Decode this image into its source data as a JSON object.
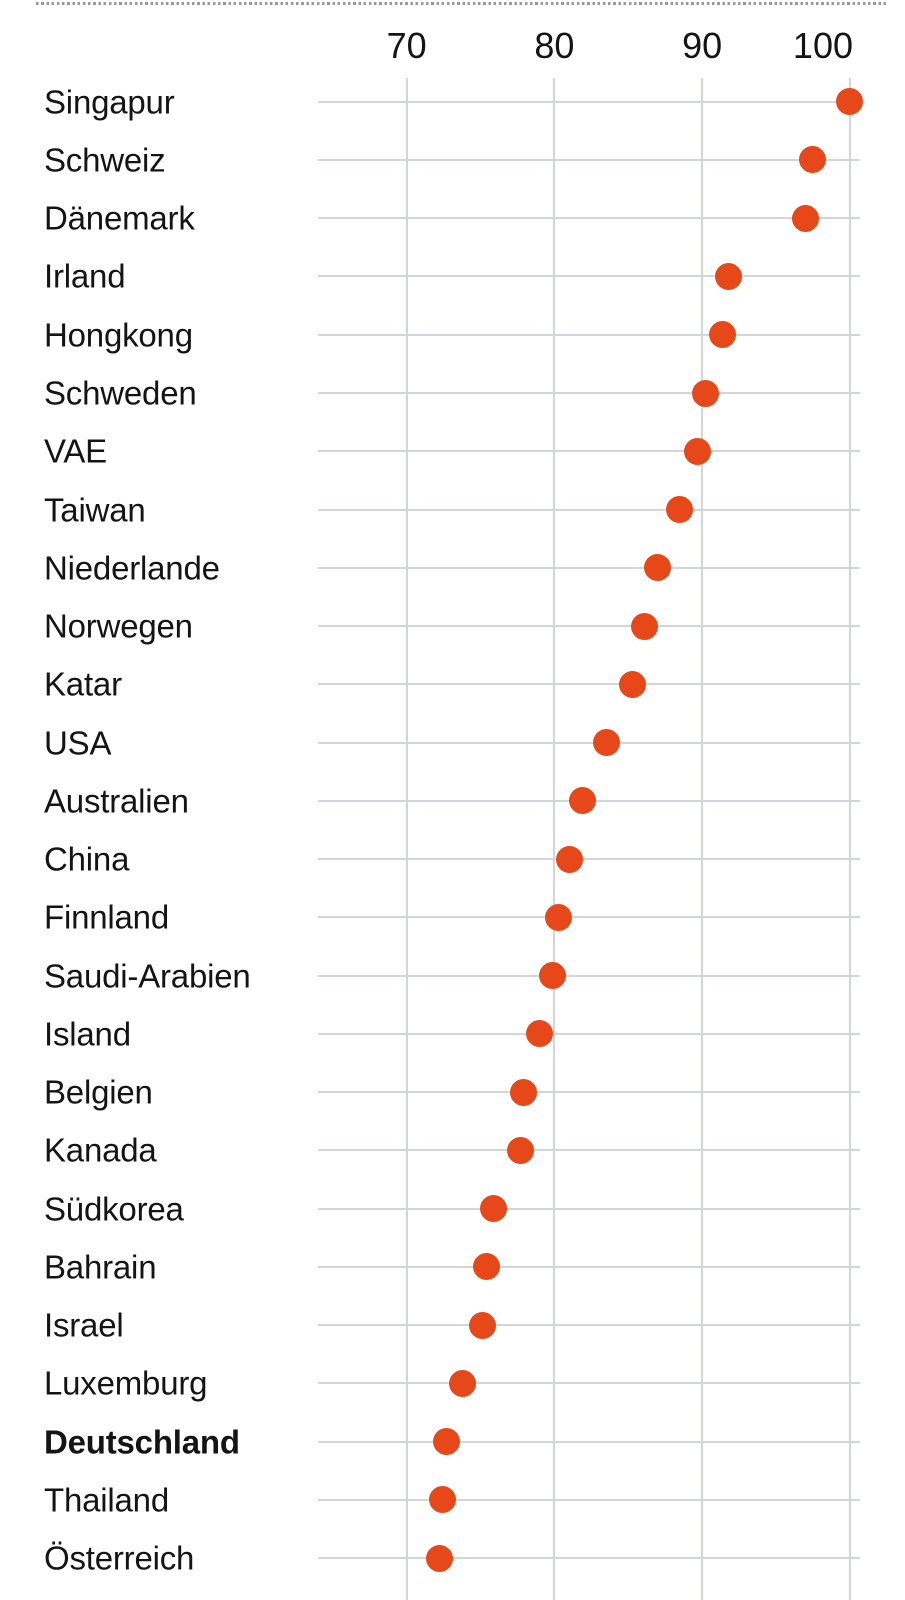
{
  "chart": {
    "axis": {
      "ticks": [
        "70",
        "80",
        "90",
        "100"
      ]
    },
    "divider": "dotted-top-border"
  },
  "colors": {
    "dot": "#e64819",
    "grid": "#d2d6d8",
    "text": "#141414",
    "divider": "#9a9a9a"
  },
  "chart_data": {
    "type": "scatter",
    "subtype": "horizontal-dot-plot",
    "categories": [
      "Singapur",
      "Schweiz",
      "Dänemark",
      "Irland",
      "Hongkong",
      "Schweden",
      "VAE",
      "Taiwan",
      "Niederlande",
      "Norwegen",
      "Katar",
      "USA",
      "Australien",
      "China",
      "Finnland",
      "Saudi-Arabien",
      "Island",
      "Belgien",
      "Kanada",
      "Südkorea",
      "Bahrain",
      "Israel",
      "Luxemburg",
      "Deutschland",
      "Thailand",
      "Österreich"
    ],
    "values": [
      100,
      97.5,
      97.0,
      91.8,
      91.4,
      90.2,
      89.7,
      88.5,
      87.0,
      86.1,
      85.3,
      83.5,
      81.9,
      81.0,
      80.3,
      79.9,
      79.0,
      77.9,
      77.7,
      75.9,
      75.4,
      75.1,
      73.8,
      72.7,
      72.4,
      72.2
    ],
    "highlight_category": "Deutschland",
    "x_ticks": [
      70,
      80,
      90,
      100
    ],
    "xlim": [
      64,
      100.8
    ],
    "grid": "on",
    "legend": "none",
    "title": "",
    "xlabel": "",
    "ylabel": ""
  }
}
